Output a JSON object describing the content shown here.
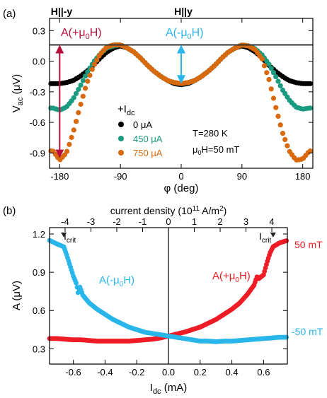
{
  "colors": {
    "black": "#000000",
    "green": "#1a9a7e",
    "orange": "#d8690d",
    "crimson": "#b5103b",
    "cyan": "#29b6ea",
    "red": "#ee1c25"
  },
  "chart_data": [
    {
      "type": "scatter",
      "panel_label": "(a)",
      "xlabel": "φ (deg)",
      "ylabel": "V_ac (μV)",
      "xlim": [
        -195,
        195
      ],
      "ylim": [
        -1.05,
        0.42
      ],
      "x_ticks": [
        -180,
        -90,
        0,
        90,
        180
      ],
      "y_ticks": [
        -0.9,
        -0.6,
        -0.3,
        0.0,
        0.3
      ],
      "hline": 0.16,
      "top_labels": [
        {
          "text": "H||-y",
          "x": -180
        },
        {
          "text": "H||y",
          "x": 0
        }
      ],
      "legend": {
        "title": "+I_dc",
        "entries": [
          "0 μA",
          "450 μA",
          "750 μA"
        ],
        "placement": "lower-center"
      },
      "params": [
        "T=280 K",
        "μ0H=50 mT"
      ],
      "annotations": [
        {
          "text": "A(+μ0H)",
          "color": "crimson",
          "arrow_x": -180,
          "arrow_from": 0.16,
          "arrow_to": -0.95
        },
        {
          "text": "A(-μ0H)",
          "color": "cyan",
          "arrow_x": 0,
          "arrow_from": 0.16,
          "arrow_to": -0.22
        }
      ],
      "series": [
        {
          "name": "0 μA",
          "color": "black",
          "i_dc_uA": 0,
          "x": [
            -190,
            -180,
            -170,
            -160,
            -150,
            -140,
            -130,
            -120,
            -110,
            -100,
            -90,
            -80,
            -70,
            -60,
            -50,
            -40,
            -30,
            -20,
            -10,
            0,
            10,
            20,
            30,
            40,
            50,
            60,
            70,
            80,
            90,
            100,
            110,
            120,
            130,
            140,
            150,
            160,
            170,
            180,
            190
          ],
          "y": [
            -0.22,
            -0.22,
            -0.21,
            -0.19,
            -0.15,
            -0.1,
            -0.04,
            0.03,
            0.09,
            0.13,
            0.15,
            0.13,
            0.09,
            0.03,
            -0.04,
            -0.1,
            -0.15,
            -0.19,
            -0.22,
            -0.23,
            -0.22,
            -0.19,
            -0.15,
            -0.1,
            -0.04,
            0.03,
            0.09,
            0.13,
            0.15,
            0.13,
            0.09,
            0.03,
            -0.04,
            -0.1,
            -0.15,
            -0.19,
            -0.21,
            -0.22,
            -0.22
          ]
        },
        {
          "name": "450 μA",
          "color": "green",
          "i_dc_uA": 450,
          "x": [
            -190,
            -180,
            -170,
            -160,
            -150,
            -140,
            -130,
            -120,
            -110,
            -100,
            -90,
            -80,
            -70,
            -60,
            -50,
            -40,
            -30,
            -20,
            -10,
            0,
            10,
            20,
            30,
            40,
            50,
            60,
            70,
            80,
            90,
            100,
            110,
            120,
            130,
            140,
            150,
            160,
            170,
            180,
            190
          ],
          "y": [
            -0.46,
            -0.48,
            -0.45,
            -0.37,
            -0.25,
            -0.12,
            -0.01,
            0.07,
            0.13,
            0.15,
            0.16,
            0.13,
            0.09,
            0.03,
            -0.04,
            -0.1,
            -0.15,
            -0.19,
            -0.21,
            -0.22,
            -0.21,
            -0.19,
            -0.15,
            -0.1,
            -0.04,
            0.03,
            0.09,
            0.13,
            0.16,
            0.15,
            0.12,
            0.06,
            -0.03,
            -0.15,
            -0.28,
            -0.38,
            -0.45,
            -0.47,
            -0.46
          ]
        },
        {
          "name": "750 μA",
          "color": "orange",
          "i_dc_uA": 750,
          "x": [
            -190,
            -180,
            -170,
            -160,
            -150,
            -140,
            -130,
            -120,
            -110,
            -100,
            -90,
            -80,
            -70,
            -60,
            -50,
            -40,
            -30,
            -20,
            -10,
            0,
            10,
            20,
            30,
            40,
            50,
            60,
            70,
            80,
            90,
            100,
            110,
            120,
            130,
            140,
            150,
            160,
            170,
            180,
            190
          ],
          "y": [
            -0.88,
            -0.97,
            -0.9,
            -0.7,
            -0.45,
            -0.22,
            -0.05,
            0.07,
            0.14,
            0.16,
            0.16,
            0.13,
            0.09,
            0.03,
            -0.04,
            -0.1,
            -0.15,
            -0.19,
            -0.21,
            -0.22,
            -0.21,
            -0.19,
            -0.15,
            -0.1,
            -0.04,
            0.03,
            0.09,
            0.13,
            0.16,
            0.15,
            0.11,
            0.02,
            -0.18,
            -0.45,
            -0.7,
            -0.88,
            -0.97,
            -0.96,
            -0.88
          ]
        }
      ]
    },
    {
      "type": "scatter",
      "panel_label": "(b)",
      "xlabel": "I_dc (mA)",
      "ylabel": "A (μV)",
      "top_axis_label": "current density (10^11 A/m^2)",
      "xlim": [
        -0.75,
        0.75
      ],
      "ylim": [
        0.18,
        1.25
      ],
      "x_ticks": [
        -0.6,
        -0.4,
        -0.2,
        0.0,
        0.2,
        0.4,
        0.6
      ],
      "y_ticks": [
        0.3,
        0.6,
        0.9,
        1.2
      ],
      "top_ticks": [
        -4,
        -3,
        -2,
        -1,
        0,
        1,
        2,
        3,
        4
      ],
      "top_ticks_mA_per_unit": 0.163,
      "vline": 0.0,
      "crit_markers": [
        {
          "text": "I_crit",
          "x": -0.66,
          "y": 1.14
        },
        {
          "text": "I_crit",
          "x": 0.66,
          "y": 1.14
        }
      ],
      "series": [
        {
          "name": "A(+μ0H)",
          "color": "red",
          "side_label": "50 mT",
          "x": [
            -0.75,
            -0.7,
            -0.65,
            -0.6,
            -0.55,
            -0.5,
            -0.45,
            -0.4,
            -0.35,
            -0.3,
            -0.25,
            -0.2,
            -0.15,
            -0.1,
            -0.05,
            0.0,
            0.05,
            0.1,
            0.15,
            0.2,
            0.25,
            0.3,
            0.35,
            0.4,
            0.45,
            0.5,
            0.54,
            0.56,
            0.57,
            0.6,
            0.62,
            0.64,
            0.66,
            0.7,
            0.75
          ],
          "y": [
            0.38,
            0.38,
            0.375,
            0.37,
            0.37,
            0.365,
            0.36,
            0.36,
            0.36,
            0.36,
            0.36,
            0.365,
            0.37,
            0.375,
            0.385,
            0.4,
            0.415,
            0.43,
            0.45,
            0.47,
            0.5,
            0.53,
            0.57,
            0.61,
            0.66,
            0.73,
            0.8,
            0.87,
            0.85,
            0.88,
            0.97,
            1.05,
            1.1,
            1.13,
            1.15
          ]
        },
        {
          "name": "A(-μ0H)",
          "color": "cyan",
          "side_label": "-50 mT",
          "x": [
            -0.75,
            -0.7,
            -0.66,
            -0.64,
            -0.62,
            -0.6,
            -0.58,
            -0.57,
            -0.56,
            -0.54,
            -0.5,
            -0.45,
            -0.4,
            -0.35,
            -0.3,
            -0.25,
            -0.2,
            -0.15,
            -0.1,
            -0.05,
            0.0,
            0.05,
            0.1,
            0.15,
            0.2,
            0.25,
            0.3,
            0.35,
            0.4,
            0.45,
            0.5,
            0.55,
            0.6,
            0.65,
            0.7,
            0.75
          ],
          "y": [
            1.15,
            1.12,
            1.1,
            1.03,
            0.95,
            0.87,
            0.81,
            0.74,
            0.79,
            0.72,
            0.66,
            0.61,
            0.57,
            0.53,
            0.5,
            0.47,
            0.45,
            0.43,
            0.42,
            0.41,
            0.4,
            0.39,
            0.38,
            0.37,
            0.36,
            0.36,
            0.355,
            0.36,
            0.36,
            0.365,
            0.37,
            0.375,
            0.38,
            0.385,
            0.39,
            0.39
          ]
        }
      ]
    }
  ]
}
